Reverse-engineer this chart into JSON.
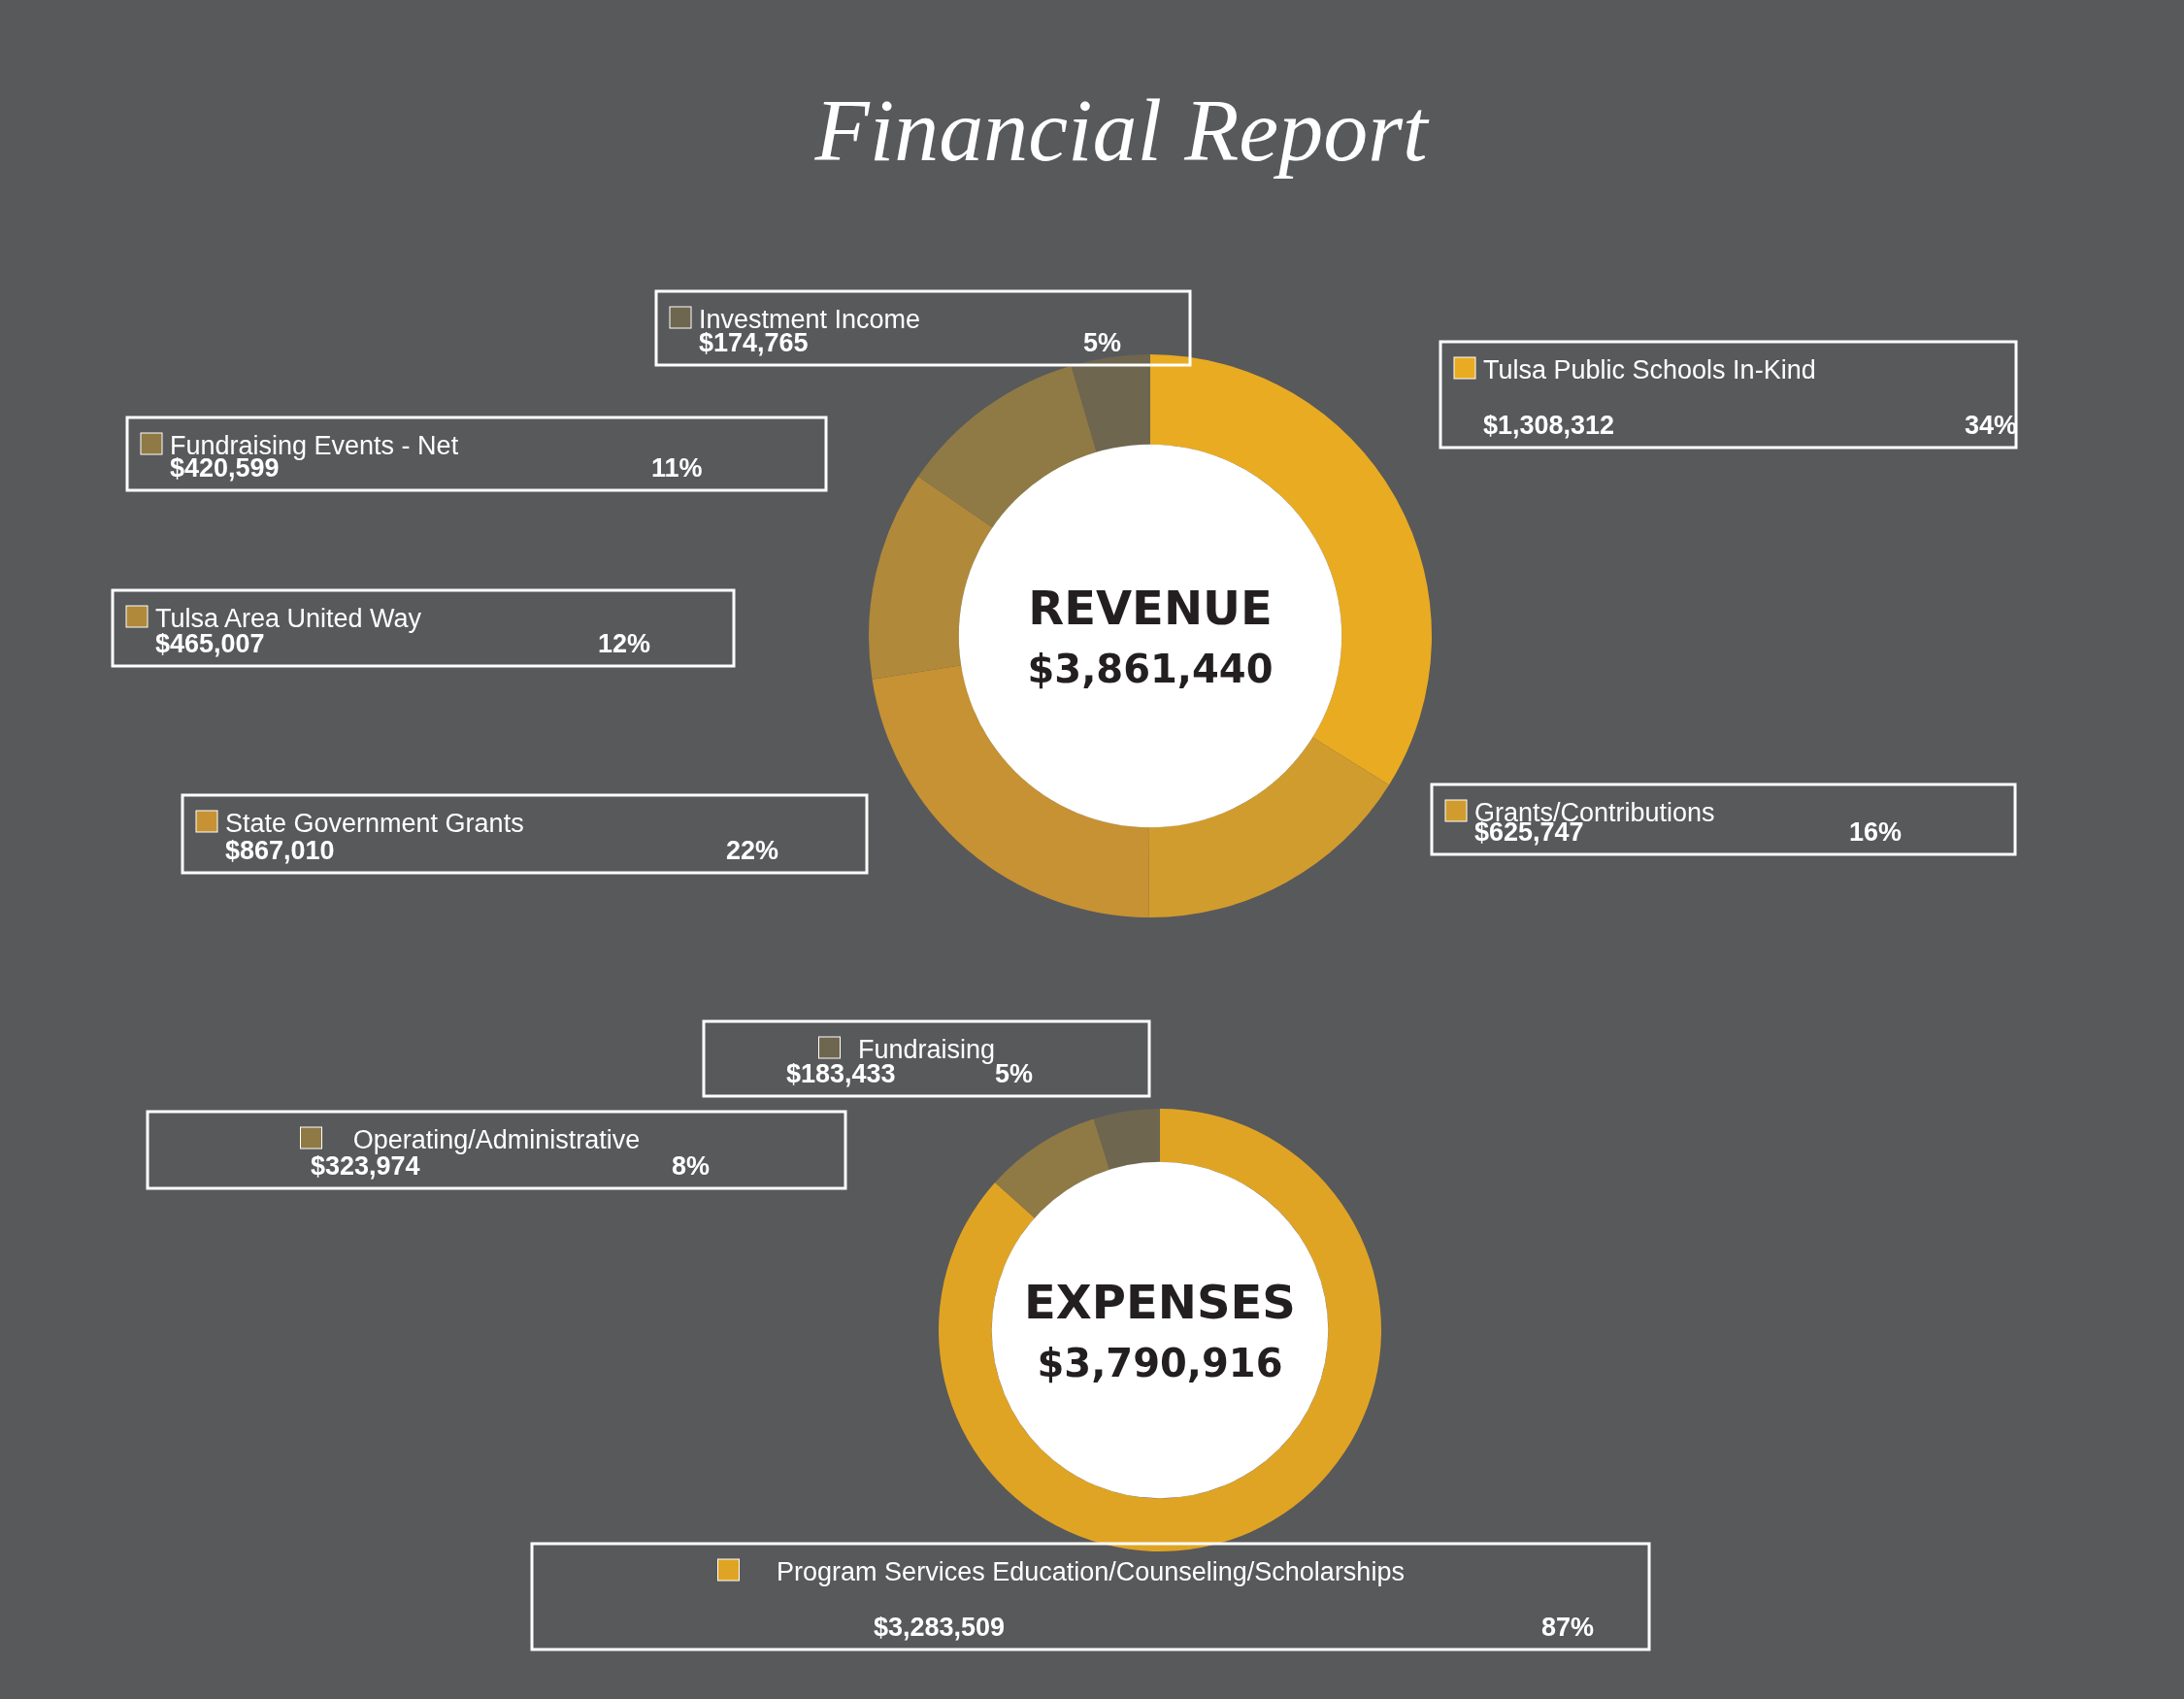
{
  "chart_data": [
    {
      "type": "donut",
      "legend": "left",
      "title": "REVENUE",
      "subtitle": "$3,861,440",
      "categories": [
        "Tulsa Public Schools In-Kind",
        "Grants/Contributions",
        "State Government Grants",
        "Tulsa   Area   United   Way",
        "Fundraising Events - Net",
        "Investment Income"
      ],
      "values": [
        1308312,
        625747,
        867010,
        465007,
        420599,
        174765
      ],
      "colors": [
        "#e8ab22",
        "#d19c2e",
        "#c69233",
        "#b0893a",
        "#8f7a45",
        "#6f6650"
      ],
      "value_labels": [
        "$1,308,312",
        "$625,747",
        "$867,010",
        "$465,007",
        "$420,599",
        "$174,765"
      ],
      "annotations": [
        "Financial Report",
        {
          "text": "34%",
          "x": "Tulsa Public Schools In-Kind"
        },
        {
          "text": "16%",
          "x": "Grants/Contributions"
        },
        {
          "text": "22%",
          "x": "State Government Grants"
        },
        {
          "text": "12%",
          "x": "Tulsa   Area   United   Way"
        },
        {
          "text": "11%",
          "x": "Fundraising Events - Net"
        },
        {
          "text": "5%",
          "x": "Investment Income"
        }
      ]
    },
    {
      "type": "donut",
      "legend": "left",
      "title": "EXPENSES",
      "subtitle": "$3,790,916",
      "categories": [
        "Program Services Education/Counseling/Scholarships",
        "Operating/Administrative",
        "Fundraising"
      ],
      "values": [
        3283509,
        323974,
        183433
      ],
      "colors": [
        "#e0a424",
        "#8f7a45",
        "#6f6650"
      ],
      "value_labels": [
        "$3,283,509",
        "$323,974",
        "$183,433"
      ],
      "annotations": [
        {
          "text": "87%",
          "x": "Program Services Education/Counseling/Scholarships"
        },
        {
          "text": "8%",
          "x": "Operating/Administrative"
        },
        {
          "text": "5%",
          "x": "Fundraising"
        }
      ]
    }
  ]
}
